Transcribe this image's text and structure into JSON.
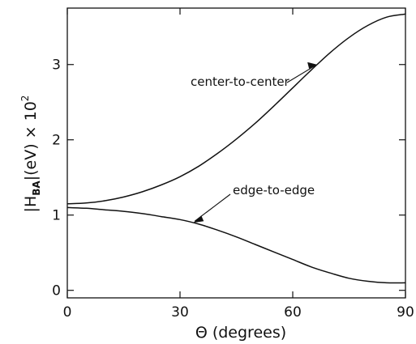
{
  "chart_data": {
    "type": "line",
    "xlabel": "Θ (degrees)",
    "ylabel": {
      "prefix": "|H",
      "subscript": "BA",
      "suffix": "|(eV) × 10",
      "superscript": "2"
    },
    "xlim": [
      0,
      90
    ],
    "ylim": [
      -0.1,
      3.75
    ],
    "x_ticks": [
      0,
      30,
      60,
      90
    ],
    "x_tick_labels": [
      "0",
      "30",
      "60",
      "90"
    ],
    "y_ticks": [
      0,
      1,
      2,
      3
    ],
    "y_tick_labels": [
      "0",
      "1",
      "2",
      "3"
    ],
    "grid": false,
    "series": [
      {
        "name": "center-to-center",
        "x": [
          0,
          5,
          10,
          15,
          20,
          25,
          30,
          35,
          40,
          45,
          50,
          55,
          60,
          65,
          70,
          75,
          80,
          85,
          90
        ],
        "values": [
          1.15,
          1.16,
          1.19,
          1.24,
          1.31,
          1.4,
          1.51,
          1.65,
          1.82,
          2.01,
          2.22,
          2.45,
          2.69,
          2.93,
          3.16,
          3.36,
          3.52,
          3.63,
          3.67
        ]
      },
      {
        "name": "edge-to-edge",
        "x": [
          0,
          5,
          10,
          15,
          20,
          25,
          30,
          35,
          40,
          45,
          50,
          55,
          60,
          65,
          70,
          75,
          80,
          85,
          90
        ],
        "values": [
          1.1,
          1.09,
          1.07,
          1.05,
          1.02,
          0.98,
          0.94,
          0.88,
          0.8,
          0.71,
          0.61,
          0.51,
          0.41,
          0.31,
          0.23,
          0.16,
          0.12,
          0.1,
          0.1
        ]
      }
    ],
    "annotations": [
      {
        "text": "center-to-center",
        "target_series": 0,
        "target_x": 66.5
      },
      {
        "text": "edge-to-edge",
        "target_series": 1,
        "target_x": 33.5
      }
    ]
  }
}
